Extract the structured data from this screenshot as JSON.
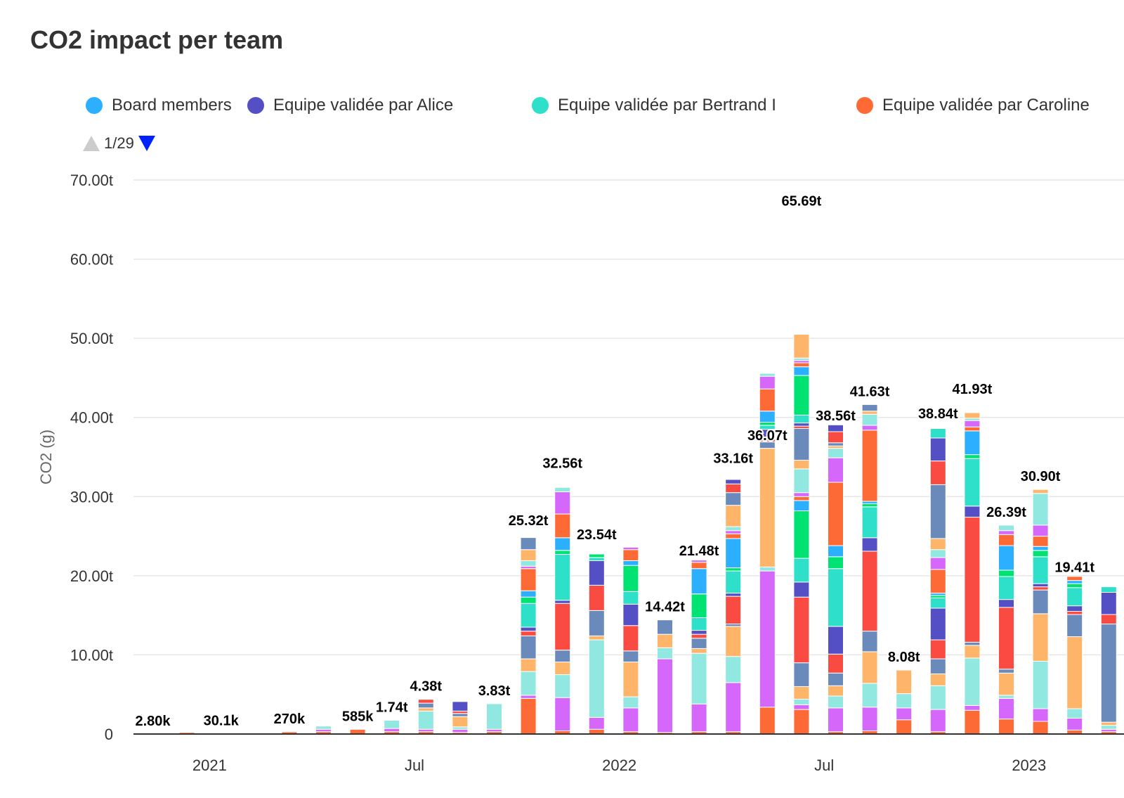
{
  "chart_data": {
    "type": "bar",
    "stacked": true,
    "title": "CO2 impact per team",
    "ylabel": "CO2 (g)",
    "ylim": [
      0,
      70
    ],
    "y_ticks": [
      "0",
      "10.00t",
      "20.00t",
      "30.00t",
      "40.00t",
      "50.00t",
      "60.00t",
      "70.00t"
    ],
    "x_ticks": [
      "2021",
      "Jul",
      "2022",
      "Jul",
      "2023"
    ],
    "grid": true,
    "legend_position": "top",
    "legend_page": "1/29",
    "legend": [
      {
        "name": "Board members",
        "color": "#2caffe"
      },
      {
        "name": "Equipe validée par Alice",
        "color": "#544fc5"
      },
      {
        "name": "Equipe validée par Bertrand I",
        "color": "#2ee0ca"
      },
      {
        "name": "Equipe validée par Caroline",
        "color": "#fe6a35"
      }
    ],
    "palette": [
      "#fe6a35",
      "#d568fb",
      "#91e8e1",
      "#feb56a",
      "#6b8abc",
      "#fa4b42",
      "#544fc5",
      "#2ee0ca",
      "#00e272",
      "#2caffe"
    ],
    "bars": [
      {
        "label": "2.80k",
        "total": 0.0028,
        "segments": [
          0.0028
        ]
      },
      {
        "label": "",
        "total": 0.2,
        "segments": [
          0.2
        ]
      },
      {
        "label": "30.1k",
        "total": 0.0301,
        "segments": [
          0.0301
        ]
      },
      {
        "label": "",
        "total": 0.0,
        "segments": []
      },
      {
        "label": "270k",
        "total": 0.27,
        "segments": [
          0.27
        ]
      },
      {
        "label": "",
        "total": 1.0,
        "segments": [
          0.3,
          0.3,
          0.4
        ]
      },
      {
        "label": "585k",
        "total": 0.585,
        "segments": [
          0.585
        ]
      },
      {
        "label": "1.74t",
        "total": 1.74,
        "segments": [
          0.3,
          0.4,
          1.04
        ]
      },
      {
        "label": "4.38t",
        "total": 4.38,
        "segments": [
          0.3,
          0.3,
          2.3,
          0.4,
          0.6,
          0.48
        ]
      },
      {
        "label": "",
        "total": 4.1,
        "segments": [
          0.2,
          0.4,
          0.3,
          1.3,
          0.4,
          0.3,
          1.2
        ]
      },
      {
        "label": "3.83t",
        "total": 3.83,
        "segments": [
          0.3,
          0.3,
          3.23
        ]
      },
      {
        "label": "25.32t",
        "total": 25.32,
        "segments": [
          4.5,
          0.4,
          3.0,
          1.6,
          2.9,
          0.6,
          0.5,
          3.0,
          0.8,
          0.8,
          2.8,
          0.3,
          0.7,
          1.4,
          1.52
        ]
      },
      {
        "label": "32.56t",
        "total": 32.56,
        "segments": [
          0.4,
          4.2,
          2.9,
          1.6,
          1.5,
          5.9,
          0.4,
          5.8,
          0.5,
          1.6,
          3.0,
          2.8,
          0.56
        ]
      },
      {
        "label": "23.54t",
        "total": 23.54,
        "segments": [
          0.6,
          1.5,
          9.8,
          0.5,
          3.2,
          3.2,
          3.1,
          0.4,
          0.44
        ]
      },
      {
        "label": "",
        "total": 23.6,
        "segments": [
          0.3,
          3.0,
          1.4,
          4.4,
          1.4,
          3.2,
          2.7,
          1.6,
          3.3,
          0.6,
          1.4,
          0.3
        ]
      },
      {
        "label": "14.42t",
        "total": 14.42,
        "segments": [
          0.2,
          9.3,
          1.4,
          1.7,
          1.82
        ]
      },
      {
        "label": "21.48t",
        "total": 21.48,
        "segments": [
          0.3,
          3.5,
          6.4,
          0.6,
          1.3,
          0.5,
          0.5,
          1.6,
          3.0,
          3.2,
          0.8,
          0.28
        ]
      },
      {
        "label": "33.16t",
        "total": 33.16,
        "segments": [
          0.3,
          6.2,
          3.3,
          3.8,
          0.3,
          3.5,
          0.4,
          2.8,
          0.4,
          3.7,
          0.6,
          0.4,
          0.5,
          2.7,
          1.6,
          1.1,
          0.56
        ]
      },
      {
        "label": "36.07t",
        "total": 36.07,
        "segments": [
          3.4,
          17.2,
          0.5,
          15.0,
          0.8,
          0.4,
          1.2,
          0.5,
          0.4,
          1.4,
          2.8,
          1.6,
          0.37
        ]
      },
      {
        "label": "65.69t",
        "total": 65.69,
        "segments": [
          3.1,
          0.6,
          0.7,
          1.6,
          3.0,
          8.3,
          1.9,
          3.0,
          6.0,
          1.3,
          0.5,
          0.5,
          3.0,
          1.1,
          4.0,
          0.3,
          0.4,
          1.0,
          5.0,
          1.1,
          0.5,
          0.3,
          0.3,
          3.0
        ]
      },
      {
        "label": "38.56t",
        "total": 38.56,
        "segments": [
          0.3,
          3.0,
          1.5,
          1.3,
          1.6,
          2.4,
          3.5,
          7.3,
          1.5,
          1.4,
          8.0,
          3.1,
          1.2,
          0.3,
          0.4,
          1.4,
          0.86
        ]
      },
      {
        "label": "41.63t",
        "total": 41.63,
        "segments": [
          0.4,
          3.0,
          3.0,
          4.0,
          2.6,
          10.1,
          1.7,
          3.9,
          0.4,
          0.3,
          9.0,
          0.6,
          1.4,
          0.4,
          0.83
        ]
      },
      {
        "label": "8.08t",
        "total": 8.08,
        "segments": [
          1.8,
          1.5,
          1.8,
          2.98
        ]
      },
      {
        "label": "38.84t",
        "total": 38.84,
        "segments": [
          0.3,
          2.8,
          3.0,
          1.5,
          1.9,
          2.4,
          4.0,
          1.3,
          0.3,
          0.3,
          3.0,
          1.5,
          1.0,
          1.4,
          6.8,
          3.0,
          2.9,
          1.2
        ]
      },
      {
        "label": "41.93t",
        "total": 41.93,
        "segments": [
          3.0,
          0.6,
          6.0,
          1.6,
          0.4,
          15.8,
          1.4,
          6.0,
          0.5,
          3.0,
          0.5,
          0.8,
          0.3,
          0.7
        ]
      },
      {
        "label": "26.39t",
        "total": 26.39,
        "segments": [
          1.9,
          2.6,
          0.4,
          2.8,
          0.5,
          7.8,
          1.0,
          2.9,
          0.8,
          3.1,
          1.4,
          0.5,
          0.69
        ]
      },
      {
        "label": "30.90t",
        "total": 30.9,
        "segments": [
          1.6,
          1.6,
          6.0,
          6.0,
          3.0,
          0.4,
          0.4,
          3.4,
          0.8,
          0.5,
          1.3,
          1.4,
          4.0,
          0.5
        ]
      },
      {
        "label": "19.41t",
        "total": 19.41,
        "segments": [
          0.5,
          1.5,
          1.2,
          9.1,
          2.8,
          0.4,
          0.7,
          2.3,
          0.5,
          0.4,
          0.51
        ]
      },
      {
        "label": "",
        "total": 18.6,
        "segments": [
          0.3,
          0.3,
          0.5,
          0.4,
          12.4,
          1.2,
          2.8,
          0.7
        ]
      }
    ]
  }
}
